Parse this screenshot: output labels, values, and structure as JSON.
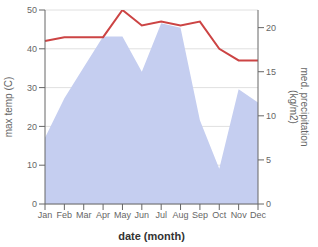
{
  "chart_data": {
    "type": "line",
    "xlabel": "date (month)",
    "ylabel": "max temp (C)",
    "y2label": "med. precipitation\n(kg/m2)",
    "categories": [
      "Jan",
      "Feb",
      "Mar",
      "Apr",
      "May",
      "Jun",
      "Jul",
      "Aug",
      "Sep",
      "Oct",
      "Nov",
      "Dec"
    ],
    "series": [
      {
        "type": "area",
        "color": "#c5cef0",
        "axis": "y2",
        "values": [
          7.5,
          12,
          15.5,
          19,
          19,
          15,
          20.5,
          20,
          9.5,
          4,
          13,
          11.5
        ]
      },
      {
        "type": "line",
        "color": "#cc4444",
        "values": [
          42,
          43,
          43,
          43,
          50,
          46,
          47,
          46,
          47,
          40,
          37,
          37
        ]
      }
    ],
    "ylim": [
      0,
      50
    ],
    "yticks": [
      0,
      10,
      20,
      30,
      40,
      50
    ],
    "y2lim": [
      0,
      22
    ],
    "y2ticks": [
      0,
      5,
      10,
      15,
      20
    ],
    "grid": true
  }
}
